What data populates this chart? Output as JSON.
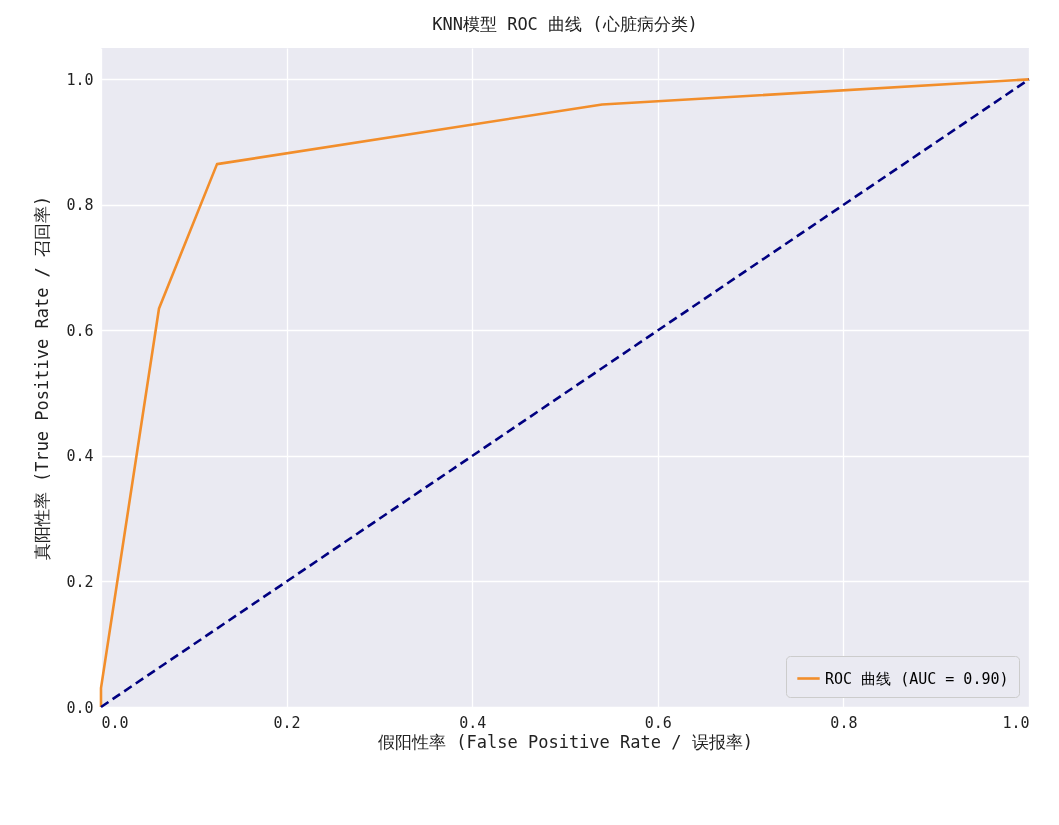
{
  "chart_data": {
    "type": "line",
    "title": "KNN模型 ROC 曲线 (心脏病分类)",
    "xlabel": "假阳性率 (False Positive Rate / 误报率)",
    "ylabel": "真阳性率 (True Positive Rate / 召回率)",
    "xlim": [
      0,
      1
    ],
    "ylim": [
      0,
      1.05
    ],
    "xticks": [
      {
        "value": 0,
        "label": "0.0"
      },
      0.2,
      0.4,
      0.6,
      0.8,
      {
        "value": 1,
        "label": "1.0"
      }
    ],
    "yticks": [
      {
        "value": 0,
        "label": "0.0"
      },
      0.2,
      0.4,
      0.6,
      0.8,
      {
        "value": 1,
        "label": "1.0"
      }
    ],
    "grid": true,
    "legend": "bottom right",
    "series": [
      {
        "name": "ROC 曲线 (AUC = 0.90)",
        "color": "#f28e2b",
        "x": [
          0,
          0,
          0.0625,
          0.125,
          0.54,
          1
        ],
        "values": [
          0,
          0.03,
          0.635,
          0.865,
          0.96,
          1
        ],
        "line_style": "solid"
      },
      {
        "color": "#000080",
        "x": [
          0,
          1
        ],
        "values": [
          0,
          1
        ],
        "line_style": "dashed"
      }
    ]
  }
}
